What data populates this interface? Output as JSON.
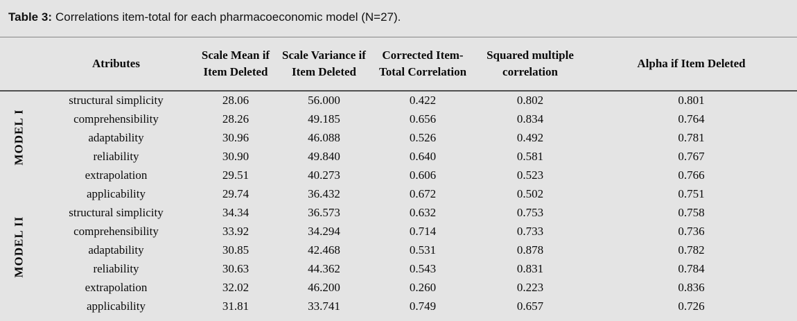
{
  "title": {
    "prefix": "Table 3:",
    "text": "Correlations item-total for each pharmacoeconomic model (N=27)."
  },
  "table": {
    "columns": [
      "Atributes",
      "Scale Mean if Item Deleted",
      "Scale Variance if Item Deleted",
      "Corrected Item-Total Correlation",
      "Squared multiple correlation",
      "Alpha if Item Deleted"
    ],
    "groups": [
      {
        "label": "MODEL I",
        "rows": [
          [
            "structural simplicity",
            "28.06",
            "56.000",
            "0.422",
            "0.802",
            "0.801"
          ],
          [
            "comprehensibility",
            "28.26",
            "49.185",
            "0.656",
            "0.834",
            "0.764"
          ],
          [
            "adaptability",
            "30.96",
            "46.088",
            "0.526",
            "0.492",
            "0.781"
          ],
          [
            "reliability",
            "30.90",
            "49.840",
            "0.640",
            "0.581",
            "0.767"
          ],
          [
            "extrapolation",
            "29.51",
            "40.273",
            "0.606",
            "0.523",
            "0.766"
          ],
          [
            "applicability",
            "29.74",
            "36.432",
            "0.672",
            "0.502",
            "0.751"
          ]
        ]
      },
      {
        "label": "MODEL II",
        "rows": [
          [
            "structural simplicity",
            "34.34",
            "36.573",
            "0.632",
            "0.753",
            "0.758"
          ],
          [
            "comprehensibility",
            "33.92",
            "34.294",
            "0.714",
            "0.733",
            "0.736"
          ],
          [
            "adaptability",
            "30.85",
            "42.468",
            "0.531",
            "0.878",
            "0.782"
          ],
          [
            "reliability",
            "30.63",
            "44.362",
            "0.543",
            "0.831",
            "0.784"
          ],
          [
            "extrapolation",
            "32.02",
            "46.200",
            "0.260",
            "0.223",
            "0.836"
          ],
          [
            "applicability",
            "31.81",
            "33.741",
            "0.749",
            "0.657",
            "0.726"
          ]
        ]
      }
    ]
  },
  "colors": {
    "page_background": "#e4e4e4",
    "text": "#0a0a0a",
    "rule_top": "#868686",
    "rule_header_bottom": "#4f4f4f"
  }
}
